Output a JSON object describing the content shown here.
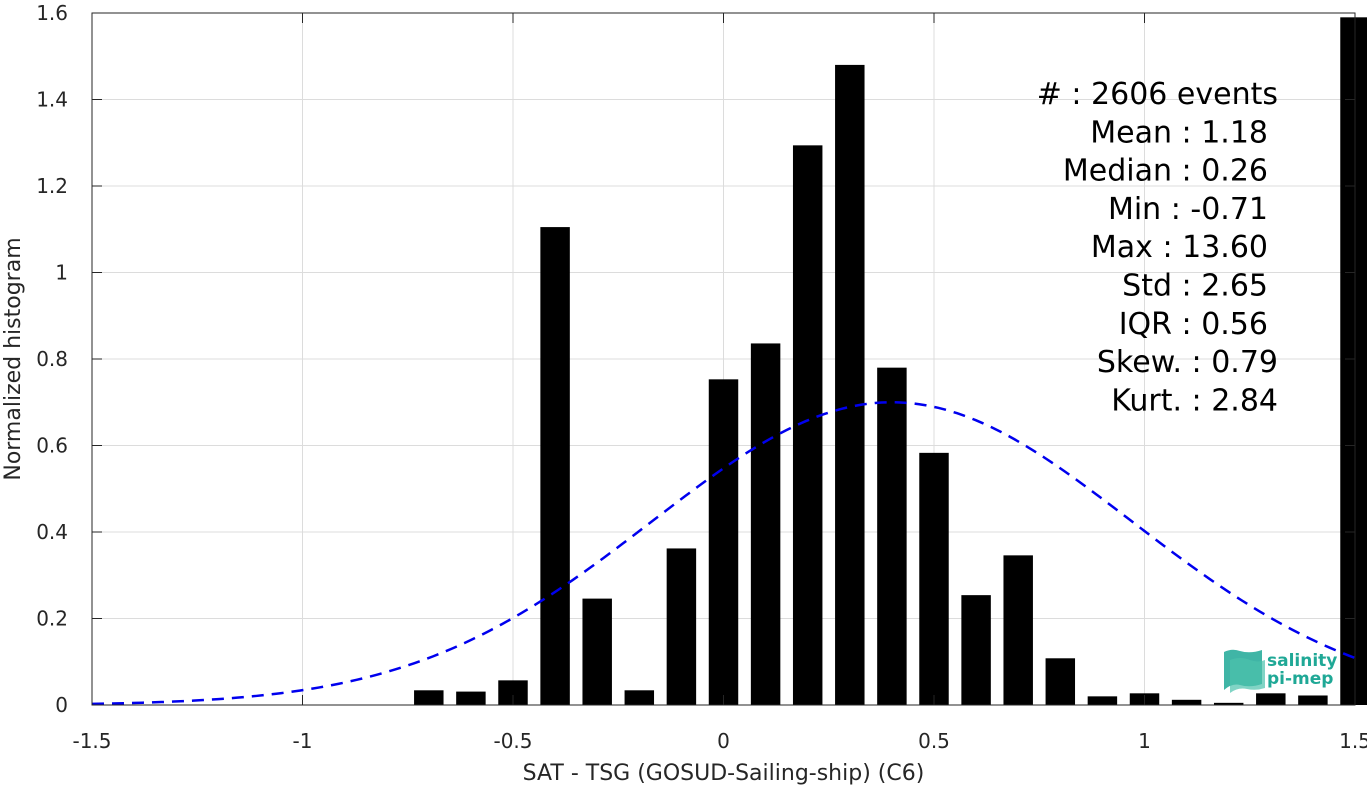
{
  "chart_data": {
    "type": "bar",
    "xlabel": "SAT - TSG (GOSUD-Sailing-ship) (C6)",
    "ylabel": "Normalized histogram",
    "xlim": [
      -1.5,
      1.5
    ],
    "ylim": [
      0,
      1.6
    ],
    "x_ticks": [
      -1.5,
      -1,
      -0.5,
      0,
      0.5,
      1,
      1.5
    ],
    "x_tick_labels": [
      "-1.5",
      "-1",
      "-0.5",
      "0",
      "0.5",
      "1",
      "1.5"
    ],
    "y_ticks": [
      0,
      0.2,
      0.4,
      0.6,
      0.8,
      1,
      1.2,
      1.4,
      1.6
    ],
    "y_tick_labels": [
      "0",
      "0.2",
      "0.4",
      "0.6",
      "0.8",
      "1",
      "1.2",
      "1.4",
      "1.6"
    ],
    "grid": true,
    "bar_width": 0.07,
    "bar_color": "#000000",
    "x": [
      -0.7,
      -0.6,
      -0.5,
      -0.4,
      -0.3,
      -0.2,
      -0.1,
      0.0,
      0.1,
      0.2,
      0.3,
      0.4,
      0.5,
      0.6,
      0.7,
      0.8,
      0.9,
      1.0,
      1.1,
      1.2,
      1.3,
      1.4,
      1.5
    ],
    "values": [
      0.034,
      0.031,
      0.057,
      1.105,
      0.246,
      0.034,
      0.362,
      0.753,
      0.836,
      1.294,
      1.48,
      0.78,
      0.583,
      0.254,
      0.346,
      0.108,
      0.02,
      0.027,
      0.012,
      0.005,
      0.027,
      0.022,
      1.59
    ],
    "normal_fit": {
      "mean": 0.4,
      "std": 0.57,
      "color": "#0000ee",
      "style": "dashed",
      "x_range": [
        -1.5,
        1.5
      ]
    },
    "stats_box": [
      "#  : 2606 events",
      "Mean : 1.18",
      "Median : 0.26",
      "Min : -0.71",
      "Max : 13.60",
      "Std : 2.65",
      "IQR : 0.56",
      "Skew. : 0.79",
      "Kurt. : 2.84"
    ]
  },
  "logo": {
    "line1": "salinity",
    "line2": "pi-mep",
    "color": "#1fa896"
  }
}
